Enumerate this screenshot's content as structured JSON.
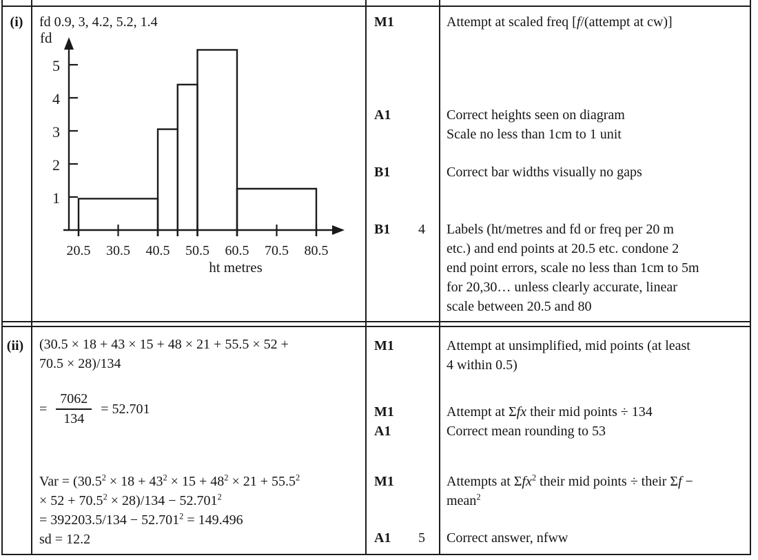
{
  "part_i": {
    "label": "(i)",
    "answer_fd_line": "fd 0.9, 3, 4.2, 5.2, 1.4",
    "marks": [
      {
        "code": "M1",
        "total": "",
        "guidance_lines": [
          [
            [
              "Attempt at scaled freq [",
              0
            ],
            [
              "f",
              1
            ],
            [
              "/(attempt at cw)]",
              0
            ]
          ]
        ]
      },
      {
        "code": "A1",
        "total": "",
        "guidance_lines": [
          [
            [
              "Correct heights seen on diagram",
              0
            ]
          ],
          [
            [
              "Scale no less than 1cm to 1 unit",
              0
            ]
          ]
        ]
      },
      {
        "code": "B1",
        "total": "",
        "guidance_lines": [
          [
            [
              "Correct bar widths visually no gaps",
              0
            ]
          ]
        ]
      },
      {
        "code": "B1",
        "total": "4",
        "guidance_lines": [
          [
            [
              "Labels (ht/metres and fd or freq per 20 m",
              0
            ]
          ],
          [
            [
              "etc.) and end points at 20.5 etc. condone 2",
              0
            ]
          ],
          [
            [
              "end point errors, scale no less than 1cm to 5m",
              0
            ]
          ],
          [
            [
              "for 20,30… unless clearly accurate, linear",
              0
            ]
          ],
          [
            [
              "scale between 20.5 and 80",
              0
            ]
          ]
        ]
      }
    ]
  },
  "part_ii": {
    "label": "(ii)",
    "work_lines": [
      [
        [
          "(30.5 × 18 + 43 × 15 + 48 × 21 + 55.5 × 52 +",
          0
        ]
      ],
      [
        [
          "70.5 × 28)/134",
          0
        ]
      ]
    ],
    "mean_eq": {
      "prefix": "=",
      "numerator": "7062",
      "denominator": "134",
      "result": "= 52.701"
    },
    "var_lines": [
      [
        [
          "Var = (30.5",
          0
        ],
        [
          "2",
          2
        ],
        [
          " × 18 + 43",
          0
        ],
        [
          "2",
          2
        ],
        [
          " × 15 + 48",
          0
        ],
        [
          "2",
          2
        ],
        [
          " × 21 + 55.5",
          0
        ],
        [
          "2",
          2
        ]
      ],
      [
        [
          "× 52 + 70.5",
          0
        ],
        [
          "2",
          2
        ],
        [
          " × 28)/134 − 52.701",
          0
        ],
        [
          "2",
          2
        ]
      ],
      [
        [
          "= 392203.5/134 − 52.701",
          0
        ],
        [
          "2",
          2
        ],
        [
          " = 149.496",
          0
        ]
      ],
      [
        [
          "sd = 12.2",
          0
        ]
      ]
    ],
    "marks": [
      {
        "code": "M1",
        "total": "",
        "guidance_lines": [
          [
            [
              "Attempt at unsimplified, mid points (at least",
              0
            ]
          ],
          [
            [
              "4 within 0.5)",
              0
            ]
          ]
        ]
      },
      {
        "code": "M1",
        "total": "",
        "guidance_lines": [
          [
            [
              "Attempt at Σ",
              0
            ],
            [
              "fx",
              1
            ],
            [
              " their mid points ÷ 134",
              0
            ]
          ]
        ]
      },
      {
        "code": "A1",
        "total": "",
        "guidance_lines": [
          [
            [
              "Correct mean rounding to 53",
              0
            ]
          ]
        ]
      },
      {
        "code": "M1",
        "total": "",
        "guidance_lines": [
          [
            [
              "Attempts at Σ",
              0
            ],
            [
              "fx",
              1
            ],
            [
              "2",
              2
            ],
            [
              " their mid points ÷ their Σ",
              0
            ],
            [
              "f",
              1
            ],
            [
              " −",
              0
            ]
          ],
          [
            [
              "mean",
              0
            ],
            [
              "2",
              2
            ]
          ]
        ]
      },
      {
        "code": "A1",
        "total": "5",
        "guidance_lines": [
          [
            [
              "Correct answer, nfww",
              0
            ]
          ]
        ]
      }
    ]
  },
  "chart_data": {
    "type": "bar",
    "subtype": "histogram",
    "ylabel": "fd",
    "xlabel": "ht metres",
    "bin_edges": [
      20.5,
      40.5,
      45.5,
      50.5,
      60.5,
      80.5
    ],
    "fd_values": [
      0.9,
      3,
      4.2,
      5.2,
      1.4
    ],
    "drawn_heights": [
      0.95,
      3.05,
      4.4,
      5.45,
      1.25
    ],
    "y_ticks": [
      1,
      2,
      3,
      4,
      5
    ],
    "x_ticks": [
      20.5,
      30.5,
      40.5,
      45.5,
      50.5,
      60.5,
      70.5,
      80.5
    ],
    "x_labels": [
      "20.5",
      "30.5",
      "40.5",
      "50.5",
      "60.5",
      "70.5",
      "80.5"
    ],
    "x_label_values": [
      20.5,
      30.5,
      40.5,
      50.5,
      60.5,
      70.5,
      80.5
    ],
    "xlim": [
      20.5,
      87
    ],
    "ylim": [
      0,
      5.8
    ],
    "grid": false,
    "legend": false
  }
}
